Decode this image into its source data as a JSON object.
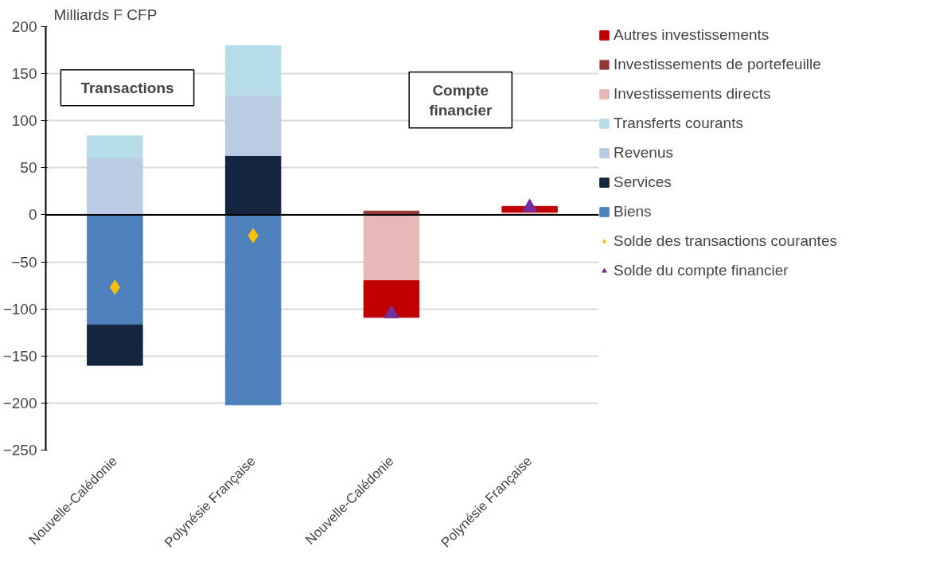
{
  "chart_data": {
    "type": "bar",
    "stacked": true,
    "ylabel": "Milliards F CFP",
    "categories": [
      "Nouvelle-Calédonie",
      "Polynésie Française",
      "Nouvelle-Calédonie",
      "Polynésie Française"
    ],
    "series": [
      {
        "name": "Biens",
        "color": "#4f81bd",
        "values": [
          -117,
          -202,
          null,
          null
        ]
      },
      {
        "name": "Services",
        "color": "#14263f",
        "values": [
          -43,
          63,
          null,
          null
        ]
      },
      {
        "name": "Revenus",
        "color": "#b9cce4",
        "values": [
          61,
          64,
          null,
          null
        ]
      },
      {
        "name": "Transferts courants",
        "color": "#b7dde8",
        "values": [
          23,
          53,
          null,
          null
        ]
      },
      {
        "name": "Investissements directs",
        "color": "#e6b9b8",
        "values": [
          null,
          null,
          -70,
          3
        ]
      },
      {
        "name": "Investissements de portefeuille",
        "color": "#953735",
        "values": [
          null,
          null,
          4,
          null
        ]
      },
      {
        "name": "Autres investissements",
        "color": "#c00000",
        "values": [
          null,
          null,
          -39,
          6
        ]
      },
      {
        "name": "Solde des transactions courantes",
        "type": "scatter",
        "marker": "diamond",
        "color": "#ffc000",
        "values": [
          -77,
          -22,
          null,
          null
        ]
      },
      {
        "name": "Solde du compte financier",
        "type": "scatter",
        "marker": "triangle",
        "color": "#7030a0",
        "values": [
          null,
          null,
          -105,
          8
        ]
      }
    ],
    "annotations": [
      "Transactions",
      "Compte\nfinancier"
    ],
    "ylim": [
      -250,
      200
    ],
    "yticks": [
      -250,
      -200,
      -150,
      -100,
      -50,
      0,
      50,
      100,
      150,
      200
    ],
    "grid": "y",
    "legend": "right"
  }
}
